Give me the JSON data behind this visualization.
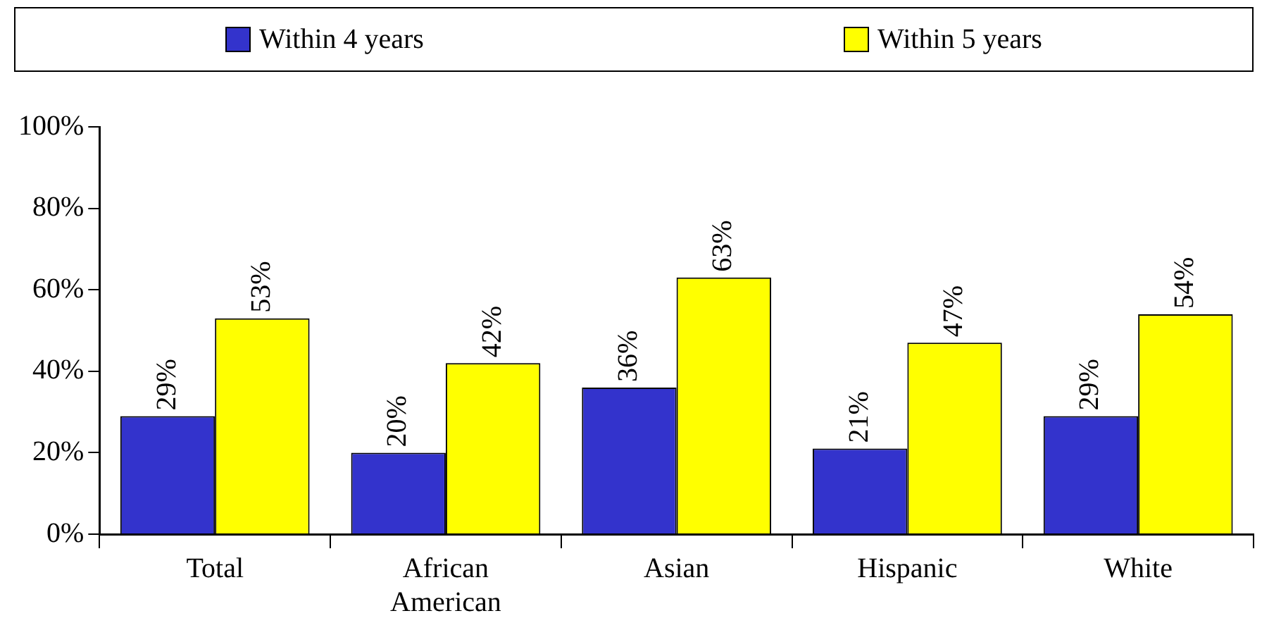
{
  "chart_data": {
    "type": "bar",
    "categories": [
      "Total",
      "African American",
      "Asian",
      "Hispanic",
      "White"
    ],
    "series": [
      {
        "name": "Within 4 years",
        "color": "#3333cc",
        "values": [
          29,
          20,
          36,
          21,
          29
        ],
        "value_labels": [
          "29%",
          "20%",
          "36%",
          "21%",
          "29%"
        ]
      },
      {
        "name": "Within 5 years",
        "color": "#ffff00",
        "values": [
          53,
          42,
          63,
          47,
          54
        ],
        "value_labels": [
          "53%",
          "42%",
          "63%",
          "47%",
          "54%"
        ]
      }
    ],
    "ylim": [
      0,
      100
    ],
    "yticks": [
      {
        "value": 0,
        "label": "0%"
      },
      {
        "value": 20,
        "label": "20%"
      },
      {
        "value": 40,
        "label": "40%"
      },
      {
        "value": 60,
        "label": "60%"
      },
      {
        "value": 80,
        "label": "80%"
      },
      {
        "value": 100,
        "label": "100%"
      }
    ],
    "grid": false,
    "legend": "top"
  }
}
